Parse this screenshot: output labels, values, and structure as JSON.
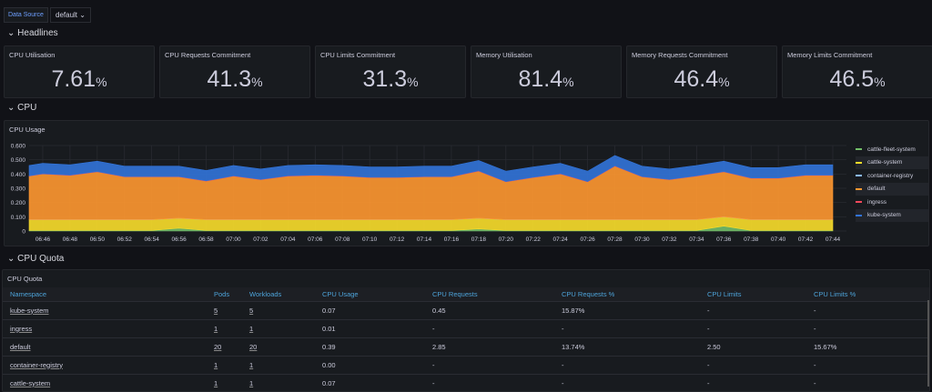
{
  "toolbar": {
    "datasource_label": "Data Source",
    "datasource_value": "default"
  },
  "rows": {
    "headlines": "Headlines",
    "cpu": "CPU",
    "cpu_quota": "CPU Quota"
  },
  "stats": [
    {
      "title": "CPU Utilisation",
      "value": "7.61",
      "unit": "%"
    },
    {
      "title": "CPU Requests Commitment",
      "value": "41.3",
      "unit": "%"
    },
    {
      "title": "CPU Limits Commitment",
      "value": "31.3",
      "unit": "%"
    },
    {
      "title": "Memory Utilisation",
      "value": "81.4",
      "unit": "%"
    },
    {
      "title": "Memory Requests Commitment",
      "value": "46.4",
      "unit": "%"
    },
    {
      "title": "Memory Limits Commitment",
      "value": "46.5",
      "unit": "%"
    }
  ],
  "chart_data": {
    "type": "area",
    "title": "CPU Usage",
    "stacked": true,
    "ylim": [
      0,
      0.6
    ],
    "yticks": [
      "0",
      "0.100",
      "0.200",
      "0.300",
      "0.400",
      "0.500",
      "0.600"
    ],
    "xticks": [
      "06:46",
      "06:48",
      "06:50",
      "06:52",
      "06:54",
      "06:56",
      "06:58",
      "07:00",
      "07:02",
      "07:04",
      "07:06",
      "07:08",
      "07:10",
      "07:12",
      "07:14",
      "07:16",
      "07:18",
      "07:20",
      "07:22",
      "07:24",
      "07:26",
      "07:28",
      "07:30",
      "07:32",
      "07:34",
      "07:36",
      "07:38",
      "07:40",
      "07:42",
      "07:44"
    ],
    "x_minutes": [
      -1,
      0,
      2,
      4,
      6,
      8,
      10,
      12,
      14,
      16,
      18,
      20,
      22,
      24,
      26,
      28,
      30,
      32,
      34,
      36,
      38,
      40,
      42,
      44,
      46,
      48,
      50,
      52,
      54,
      56,
      58
    ],
    "series": [
      {
        "name": "cattle-fleet-system",
        "color": "#73bf69",
        "values": [
          0.004,
          0.004,
          0.004,
          0.004,
          0.004,
          0.004,
          0.02,
          0.004,
          0.004,
          0.004,
          0.004,
          0.004,
          0.004,
          0.004,
          0.004,
          0.004,
          0.004,
          0.015,
          0.004,
          0.004,
          0.004,
          0.004,
          0.004,
          0.004,
          0.004,
          0.004,
          0.035,
          0.004,
          0.004,
          0.004,
          0.004
        ]
      },
      {
        "name": "cattle-system",
        "color": "#fade2a",
        "values": [
          0.076,
          0.076,
          0.076,
          0.076,
          0.076,
          0.076,
          0.07,
          0.076,
          0.076,
          0.076,
          0.076,
          0.076,
          0.076,
          0.076,
          0.076,
          0.076,
          0.076,
          0.075,
          0.076,
          0.076,
          0.076,
          0.076,
          0.076,
          0.076,
          0.076,
          0.076,
          0.065,
          0.076,
          0.076,
          0.076,
          0.076
        ]
      },
      {
        "name": "container-registry",
        "color": "#8ab8ff",
        "values": [
          0,
          0,
          0,
          0,
          0,
          0,
          0,
          0,
          0,
          0,
          0,
          0,
          0,
          0,
          0,
          0,
          0,
          0,
          0,
          0,
          0,
          0,
          0,
          0,
          0,
          0,
          0,
          0,
          0,
          0,
          0
        ]
      },
      {
        "name": "default",
        "color": "#ff9830",
        "values": [
          0.305,
          0.32,
          0.31,
          0.335,
          0.3,
          0.3,
          0.29,
          0.27,
          0.305,
          0.28,
          0.305,
          0.31,
          0.305,
          0.295,
          0.295,
          0.3,
          0.3,
          0.33,
          0.265,
          0.295,
          0.32,
          0.265,
          0.375,
          0.3,
          0.28,
          0.305,
          0.315,
          0.29,
          0.29,
          0.31,
          0.31
        ]
      },
      {
        "name": "ingress",
        "color": "#f2495c",
        "values": [
          0.002,
          0.002,
          0.002,
          0.002,
          0.002,
          0.002,
          0.002,
          0.002,
          0.002,
          0.002,
          0.002,
          0.002,
          0.002,
          0.002,
          0.002,
          0.002,
          0.002,
          0.002,
          0.002,
          0.002,
          0.002,
          0.002,
          0.002,
          0.002,
          0.002,
          0.002,
          0.002,
          0.002,
          0.002,
          0.002,
          0.002
        ]
      },
      {
        "name": "kube-system",
        "color": "#3274d9",
        "values": [
          0.073,
          0.073,
          0.073,
          0.073,
          0.073,
          0.073,
          0.073,
          0.073,
          0.073,
          0.073,
          0.073,
          0.073,
          0.073,
          0.073,
          0.073,
          0.073,
          0.073,
          0.073,
          0.073,
          0.073,
          0.073,
          0.073,
          0.073,
          0.073,
          0.073,
          0.073,
          0.073,
          0.073,
          0.073,
          0.073,
          0.073
        ]
      }
    ]
  },
  "table": {
    "title": "CPU Quota",
    "columns": [
      "Namespace",
      "Pods",
      "Workloads",
      "CPU Usage",
      "CPU Requests",
      "CPU Requests %",
      "CPU Limits",
      "CPU Limits %"
    ],
    "rows": [
      [
        "kube-system",
        "5",
        "5",
        "0.07",
        "0.45",
        "15.87%",
        "-",
        "-"
      ],
      [
        "ingress",
        "1",
        "1",
        "0.01",
        "-",
        "-",
        "-",
        "-"
      ],
      [
        "default",
        "20",
        "20",
        "0.39",
        "2.85",
        "13.74%",
        "2.50",
        "15.67%"
      ],
      [
        "container-registry",
        "1",
        "1",
        "0.00",
        "-",
        "-",
        "-",
        "-"
      ],
      [
        "cattle-system",
        "1",
        "1",
        "0.07",
        "-",
        "-",
        "-",
        "-"
      ]
    ]
  }
}
